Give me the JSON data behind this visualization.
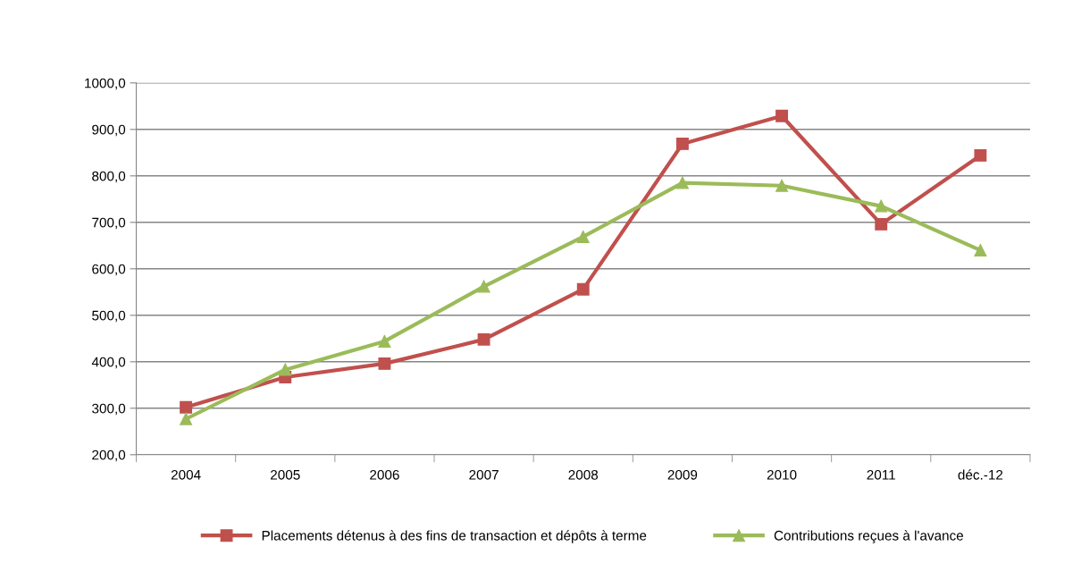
{
  "chart_data": {
    "type": "line",
    "categories": [
      "2004",
      "2005",
      "2006",
      "2007",
      "2008",
      "2009",
      "2010",
      "2011",
      "déc.-12"
    ],
    "series": [
      {
        "name": "Placements détenus à des fins de transaction et dépôts à terme",
        "color": "#c0504d",
        "marker": "square",
        "values": [
          302,
          367,
          396,
          448,
          556,
          869,
          929,
          696,
          844
        ]
      },
      {
        "name": "Contributions reçues à l'avance",
        "color": "#9bbb59",
        "marker": "triangle",
        "values": [
          277,
          383,
          444,
          562,
          669,
          785,
          779,
          735,
          640
        ]
      }
    ],
    "ylim": [
      200,
      1000
    ],
    "yticks": [
      {
        "value": 200,
        "label": "200,0"
      },
      {
        "value": 300,
        "label": "300,0"
      },
      {
        "value": 400,
        "label": "400,0"
      },
      {
        "value": 500,
        "label": "500,0"
      },
      {
        "value": 600,
        "label": "600,0"
      },
      {
        "value": 700,
        "label": "700,0"
      },
      {
        "value": 800,
        "label": "800,0"
      },
      {
        "value": 900,
        "label": "900,0"
      },
      {
        "value": 1000,
        "label": "1000,0"
      }
    ],
    "grid": "y",
    "legend": "bottom",
    "line_style": "solid"
  }
}
